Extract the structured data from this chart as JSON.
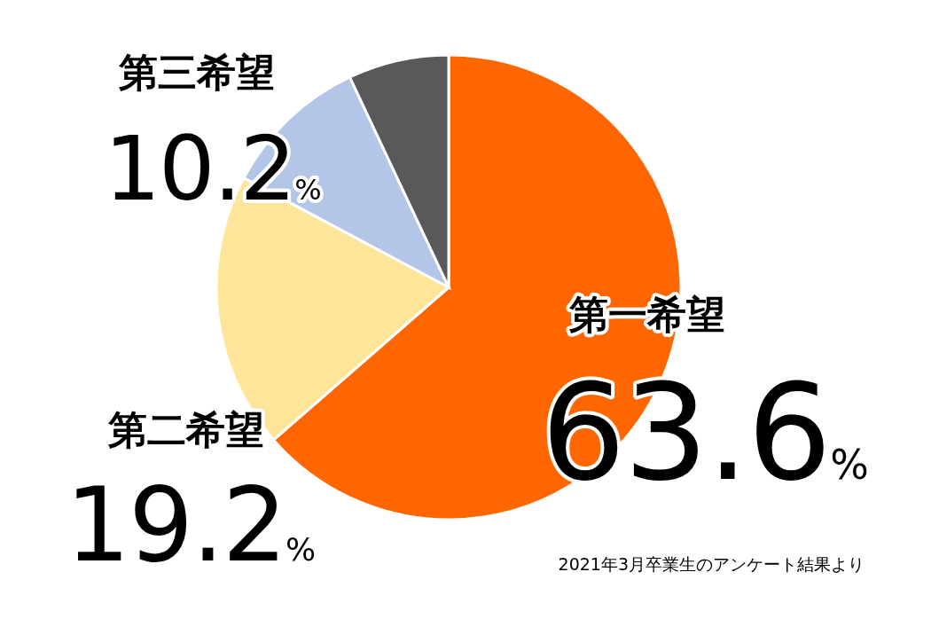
{
  "chart_data": {
    "type": "pie",
    "categories": [
      "第一希望",
      "第二希望",
      "第三希望",
      null
    ],
    "values": [
      63.6,
      19.2,
      10.2,
      7.0
    ],
    "colors": [
      "#ff6600",
      "#fee599",
      "#b4c6e7",
      "#595959"
    ],
    "value_labels": [
      "63.6%",
      "19.2%",
      "10.2%",
      null
    ],
    "annotations": [
      "2021年3月卒業生のアンケート結果より"
    ]
  }
}
